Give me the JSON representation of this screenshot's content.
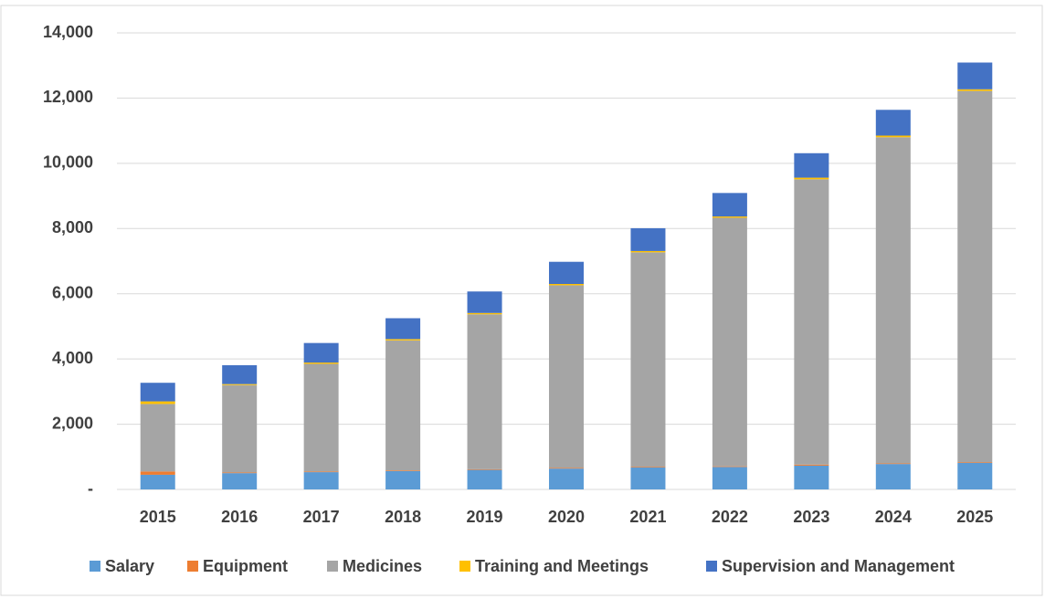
{
  "chart_data": {
    "type": "bar",
    "stacked": true,
    "categories": [
      "2015",
      "2016",
      "2017",
      "2018",
      "2019",
      "2020",
      "2021",
      "2022",
      "2023",
      "2024",
      "2025"
    ],
    "series": [
      {
        "name": "Salary",
        "color": "#5b9bd5",
        "values": [
          450,
          500,
          530,
          560,
          600,
          640,
          680,
          690,
          730,
          780,
          820
        ]
      },
      {
        "name": "Equipment",
        "color": "#ed7d31",
        "values": [
          100,
          20,
          20,
          20,
          20,
          20,
          20,
          20,
          30,
          20,
          20
        ]
      },
      {
        "name": "Medicines",
        "color": "#a5a5a5",
        "values": [
          2070,
          2680,
          3300,
          3990,
          4750,
          5600,
          6570,
          7620,
          8750,
          10000,
          11380
        ]
      },
      {
        "name": "Training and Meetings",
        "color": "#ffc000",
        "values": [
          80,
          30,
          40,
          40,
          40,
          40,
          40,
          40,
          50,
          50,
          50
        ]
      },
      {
        "name": "Supervision and Management",
        "color": "#4472c4",
        "values": [
          570,
          580,
          600,
          640,
          660,
          680,
          700,
          720,
          750,
          790,
          820
        ]
      }
    ],
    "ylim": [
      0,
      14000
    ],
    "yticks": [
      {
        "value": 0,
        "label": "-"
      },
      {
        "value": 2000,
        "label": "2,000"
      },
      {
        "value": 4000,
        "label": "4,000"
      },
      {
        "value": 6000,
        "label": "6,000"
      },
      {
        "value": 8000,
        "label": "8,000"
      },
      {
        "value": 10000,
        "label": "10,000"
      },
      {
        "value": 12000,
        "label": "12,000"
      },
      {
        "value": 14000,
        "label": "14,000"
      }
    ],
    "grid": true,
    "legend": "bottom"
  }
}
